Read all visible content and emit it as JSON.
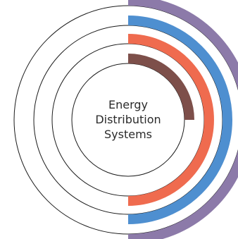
{
  "center_label": {
    "line1": "Energy",
    "line2": "Distribution",
    "line3": "Systems"
  },
  "rings": [
    {
      "name": "ring-4",
      "color": "#8c7aa9",
      "arc_fraction": 0.5
    },
    {
      "name": "ring-3",
      "color": "#4e8fd0",
      "arc_fraction": 0.5
    },
    {
      "name": "ring-2",
      "color": "#ef6b4f",
      "arc_fraction": 0.5
    },
    {
      "name": "ring-1",
      "color": "#7d4f4a",
      "arc_fraction": 0.25
    }
  ],
  "outline_color": "#1a1a1a"
}
